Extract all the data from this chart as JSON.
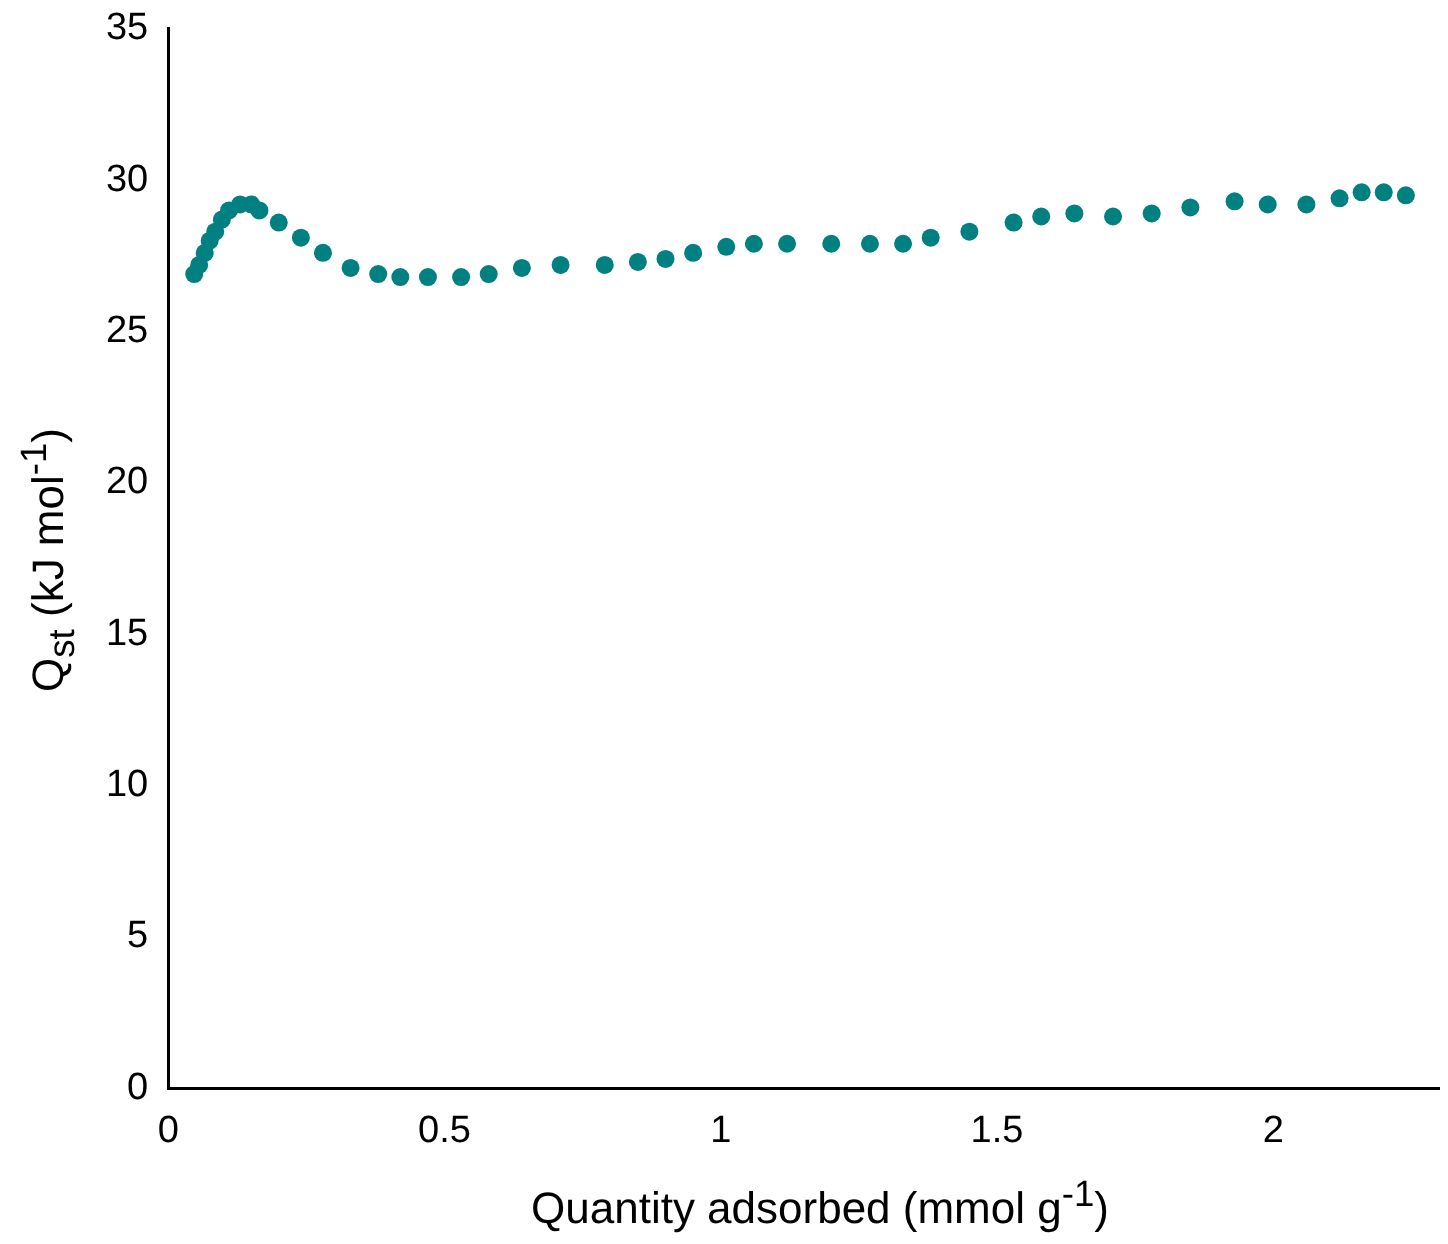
{
  "chart_data": {
    "type": "scatter",
    "xlabel": "Quantity adsorbed (mmol g$^{-1}$)",
    "ylabel": "Q$_{st}$ (kJ mol$^{-1}$)",
    "x": [
      0.047,
      0.056,
      0.066,
      0.075,
      0.085,
      0.097,
      0.11,
      0.13,
      0.15,
      0.165,
      0.2,
      0.24,
      0.28,
      0.33,
      0.38,
      0.42,
      0.47,
      0.53,
      0.58,
      0.64,
      0.71,
      0.79,
      0.85,
      0.9,
      0.95,
      1.01,
      1.06,
      1.12,
      1.2,
      1.27,
      1.33,
      1.38,
      1.45,
      1.53,
      1.58,
      1.64,
      1.71,
      1.78,
      1.85,
      1.93,
      1.99,
      2.06,
      2.12,
      2.16,
      2.2,
      2.24
    ],
    "values": [
      26.9,
      27.2,
      27.6,
      28.0,
      28.3,
      28.7,
      29.0,
      29.2,
      29.2,
      29.0,
      28.6,
      28.1,
      27.6,
      27.1,
      26.9,
      26.8,
      26.8,
      26.8,
      26.9,
      27.1,
      27.2,
      27.2,
      27.3,
      27.4,
      27.6,
      27.8,
      27.9,
      27.9,
      27.9,
      27.9,
      27.9,
      28.1,
      28.3,
      28.6,
      28.8,
      28.9,
      28.8,
      28.9,
      29.1,
      29.3,
      29.2,
      29.2,
      29.4,
      29.6,
      29.6,
      29.5
    ],
    "color": "#008080",
    "marker": "circle",
    "grid": false,
    "legend": false,
    "xlim": [
      0,
      2.3
    ],
    "xticks": [
      0,
      0.5,
      1,
      1.5,
      2
    ],
    "ylim": [
      0,
      35
    ],
    "yticks": [
      0,
      5,
      10,
      15,
      20,
      25,
      30,
      35
    ]
  }
}
